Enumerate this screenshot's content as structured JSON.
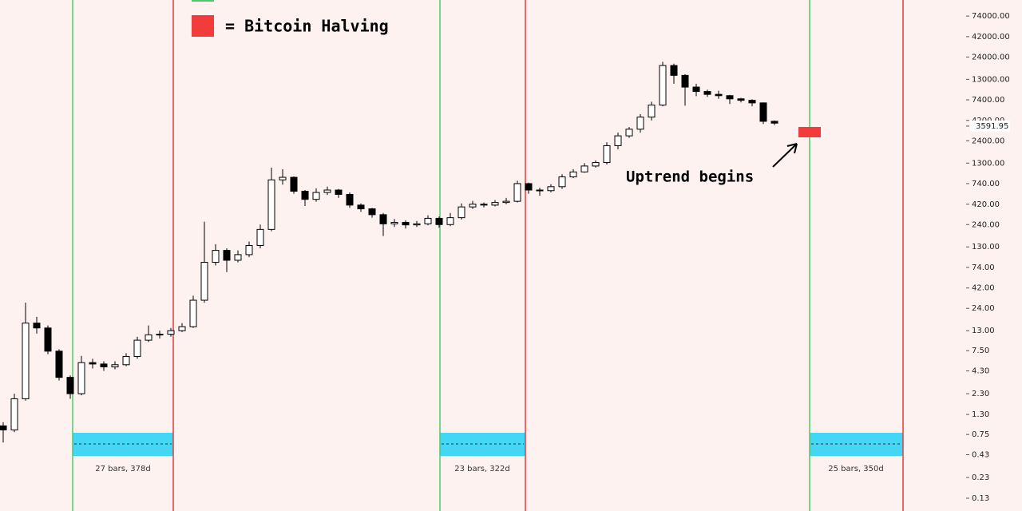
{
  "chart_data": {
    "type": "candlestick",
    "log_scale": true,
    "up_color": "#ffffff",
    "down_color": "#000000",
    "ylim": [
      0.0915,
      115000
    ],
    "yticks": [
      {
        "value": 74000,
        "label": "74000.00"
      },
      {
        "value": 42000,
        "label": "42000.00"
      },
      {
        "value": 24000,
        "label": "24000.00"
      },
      {
        "value": 13000,
        "label": "13000.00"
      },
      {
        "value": 7400,
        "label": "7400.00"
      },
      {
        "value": 4200,
        "label": "4200.00"
      },
      {
        "value": 2400,
        "label": "2400.00"
      },
      {
        "value": 1300,
        "label": "1300.00"
      },
      {
        "value": 740,
        "label": "740.00"
      },
      {
        "value": 420,
        "label": "420.00"
      },
      {
        "value": 240,
        "label": "240.00"
      },
      {
        "value": 130,
        "label": "130.00"
      },
      {
        "value": 74,
        "label": "74.00"
      },
      {
        "value": 42,
        "label": "42.00"
      },
      {
        "value": 24,
        "label": "24.00"
      },
      {
        "value": 13,
        "label": "13.00"
      },
      {
        "value": 7.5,
        "label": "7.50"
      },
      {
        "value": 4.3,
        "label": "4.30"
      },
      {
        "value": 2.3,
        "label": "2.30"
      },
      {
        "value": 1.3,
        "label": "1.30"
      },
      {
        "value": 0.75,
        "label": "0.75"
      },
      {
        "value": 0.43,
        "label": "0.43"
      },
      {
        "value": 0.23,
        "label": "0.23"
      },
      {
        "value": 0.13,
        "label": "0.13"
      }
    ],
    "last_price": 3591.95,
    "legend_label": "= Bitcoin Halving",
    "annotation": "Uptrend begins",
    "range_labels": [
      "27 bars, 378d",
      "23 bars, 322d",
      "25 bars, 350d"
    ],
    "series": {
      "open": [
        0.95,
        0.85,
        2.0,
        16,
        14,
        7.4,
        3.6,
        2.3,
        5.4,
        5.2,
        4.8,
        5.1,
        6.4,
        10,
        11.6,
        11.8,
        13,
        14.5,
        30,
        85,
        118,
        90,
        105,
        135,
        210,
        820,
        880,
        600,
        480,
        580,
        620,
        550,
        410,
        370,
        315,
        245,
        255,
        238,
        245,
        285,
        240,
        290,
        390,
        420,
        410,
        440,
        455,
        740,
        620,
        610,
        680,
        890,
        1020,
        1200,
        1320,
        2100,
        2750,
        3300,
        4600,
        6400,
        19000,
        14500,
        10500,
        9300,
        8600,
        8300,
        7600,
        7300,
        6800,
        4100
      ],
      "high": [
        1.05,
        2.3,
        28,
        19,
        15,
        7.8,
        3.8,
        6.5,
        6.0,
        5.6,
        5.6,
        7.0,
        11,
        15,
        13,
        14,
        16,
        34,
        260,
        140,
        125,
        118,
        150,
        240,
        1150,
        1100,
        900,
        620,
        650,
        680,
        640,
        580,
        430,
        380,
        330,
        280,
        270,
        265,
        310,
        300,
        330,
        430,
        460,
        440,
        470,
        500,
        800,
        760,
        660,
        730,
        960,
        1100,
        1300,
        1400,
        2300,
        3000,
        3500,
        5000,
        7000,
        21000,
        20000,
        15000,
        11500,
        9800,
        9500,
        8500,
        7800,
        7500,
        6900,
        4200
      ],
      "low": [
        0.6,
        0.8,
        1.9,
        12,
        6.8,
        3.3,
        2.0,
        2.2,
        4.6,
        4.3,
        4.5,
        4.9,
        6.0,
        9.5,
        10.5,
        11,
        12.5,
        14,
        28,
        78,
        65,
        85,
        98,
        125,
        200,
        720,
        560,
        400,
        450,
        540,
        500,
        380,
        340,
        290,
        175,
        225,
        215,
        225,
        235,
        220,
        230,
        275,
        370,
        385,
        395,
        420,
        440,
        560,
        530,
        580,
        640,
        860,
        1000,
        1150,
        1250,
        1900,
        2600,
        3000,
        4200,
        6200,
        11500,
        6300,
        8200,
        8000,
        7600,
        6600,
        6900,
        6200,
        3800,
        3700
      ],
      "close": [
        0.85,
        2.0,
        16,
        14,
        7.4,
        3.6,
        2.3,
        5.4,
        5.2,
        4.8,
        5.1,
        6.4,
        10,
        11.6,
        11.8,
        13,
        14.5,
        30,
        85,
        118,
        90,
        105,
        135,
        210,
        820,
        880,
        600,
        480,
        580,
        620,
        550,
        410,
        370,
        315,
        245,
        255,
        238,
        245,
        285,
        240,
        290,
        390,
        420,
        410,
        440,
        455,
        740,
        620,
        610,
        680,
        890,
        1020,
        1200,
        1320,
        2100,
        2750,
        3300,
        4600,
        6400,
        19000,
        14500,
        10500,
        9300,
        8600,
        8300,
        7600,
        7300,
        6800,
        4100,
        3900
      ]
    }
  }
}
